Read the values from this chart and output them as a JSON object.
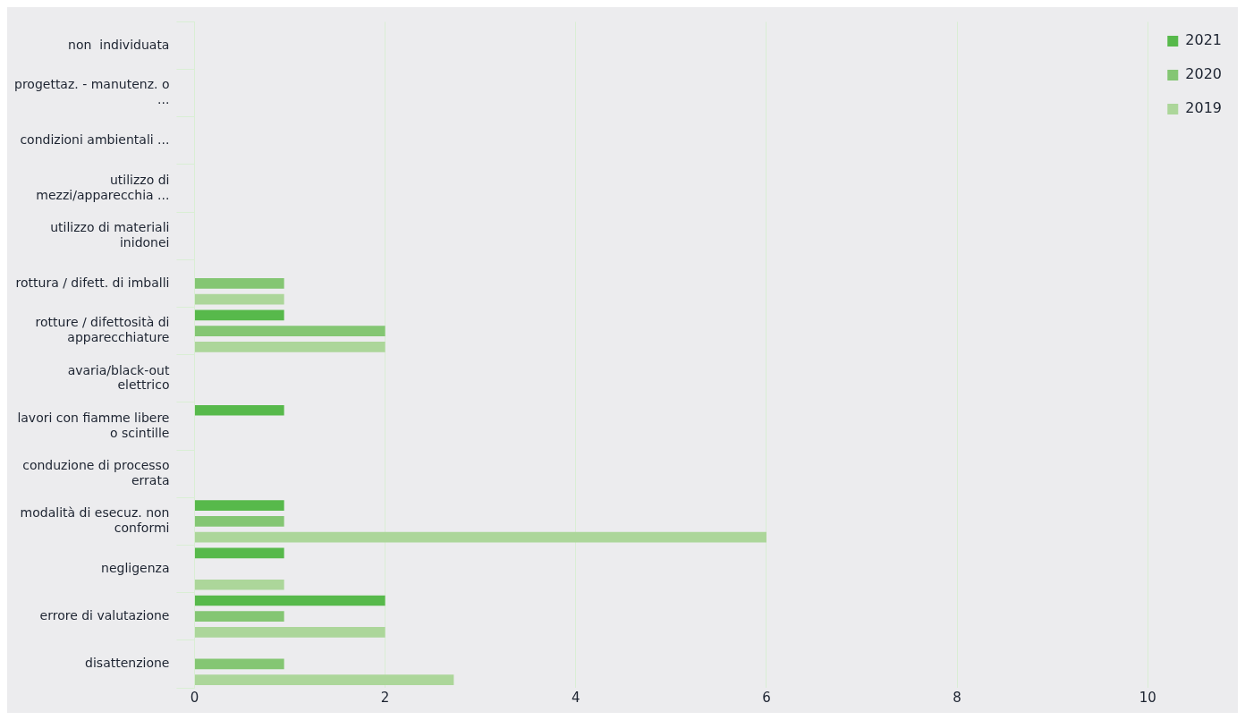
{
  "chart_data": {
    "type": "bar",
    "orientation": "horizontal",
    "categories": [
      "non  individuata",
      "progettaz. - manutenz. o ...",
      "condizioni ambientali ...",
      "utilizzo di mezzi/apparecchia ...",
      "utilizzo di materiali inidonei",
      "rottura / difett. di imballi",
      "rotture / difettosità di apparecchiature",
      "avaria/black-out elettrico",
      "lavori con fiamme libere o scintille",
      "conduzione di processo errata",
      "modalità di esecuz. non conformi",
      "negligenza",
      "errore di valutazione",
      "disattenzione"
    ],
    "series": [
      {
        "name": "2021",
        "color": "#57b94b",
        "values": [
          null,
          null,
          null,
          null,
          null,
          null,
          0.94,
          null,
          0.94,
          null,
          0.94,
          0.94,
          2,
          null
        ]
      },
      {
        "name": "2020",
        "color": "#84c673",
        "values": [
          null,
          null,
          null,
          null,
          null,
          0.94,
          2,
          null,
          null,
          null,
          0.94,
          null,
          0.94,
          0.94
        ]
      },
      {
        "name": "2019",
        "color": "#acd69a",
        "values": [
          null,
          null,
          null,
          null,
          null,
          0.94,
          2,
          null,
          null,
          null,
          6,
          0.94,
          2,
          2.72
        ]
      }
    ],
    "xlim": [
      0,
      10
    ],
    "xticks": [
      0,
      2,
      4,
      6,
      8,
      10
    ],
    "grid": "x",
    "legend": "top right"
  }
}
